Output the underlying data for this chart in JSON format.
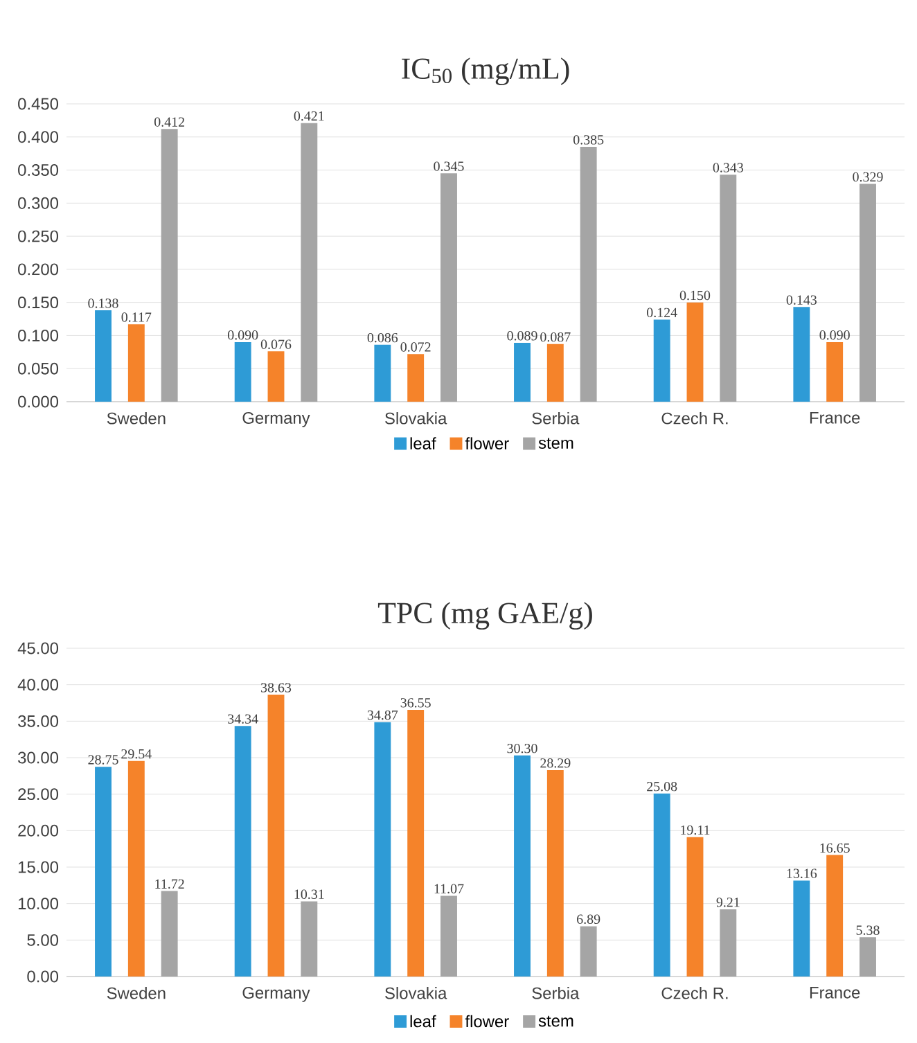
{
  "chart_data": [
    {
      "type": "bar",
      "title": "IC$_{50}$ (mg/mL)",
      "categories": [
        "Sweden",
        "Germany",
        "Slovakia",
        "Serbia",
        "Czech R.",
        "France"
      ],
      "series": [
        {
          "name": "leaf",
          "color": "#2e9bd6",
          "values": [
            0.138,
            0.09,
            0.086,
            0.089,
            0.124,
            0.143
          ],
          "value_labels": [
            "0.138",
            "0.090",
            "0.086",
            "0.089",
            "0.124",
            "0.143"
          ]
        },
        {
          "name": "flower",
          "color": "#f5832a",
          "values": [
            0.117,
            0.076,
            0.072,
            0.087,
            0.15,
            0.09
          ],
          "value_labels": [
            "0.117",
            "0.076",
            "0.072",
            "0.087",
            "0.150",
            "0.090"
          ]
        },
        {
          "name": "stem",
          "color": "#a5a5a5",
          "values": [
            0.412,
            0.421,
            0.345,
            0.385,
            0.343,
            0.329
          ],
          "value_labels": [
            "0.412",
            "0.421",
            "0.345",
            "0.385",
            "0.343",
            "0.329"
          ]
        }
      ],
      "ylim": [
        0,
        0.45
      ],
      "yticks": [
        {
          "value": 0,
          "label": "0.000"
        },
        {
          "value": 0.05,
          "label": "0.050"
        },
        {
          "value": 0.1,
          "label": "0.100"
        },
        {
          "value": 0.15,
          "label": "0.150"
        },
        {
          "value": 0.2,
          "label": "0.200"
        },
        {
          "value": 0.25,
          "label": "0.250"
        },
        {
          "value": 0.3,
          "label": "0.300"
        },
        {
          "value": 0.35,
          "label": "0.350"
        },
        {
          "value": 0.4,
          "label": "0.400"
        },
        {
          "value": 0.45,
          "label": "0.450"
        }
      ],
      "grid": "y",
      "legend": "bottom"
    },
    {
      "type": "bar",
      "title": "TPC (mg GAE/g)",
      "categories": [
        "Sweden",
        "Germany",
        "Slovakia",
        "Serbia",
        "Czech R.",
        "France"
      ],
      "series": [
        {
          "name": "leaf",
          "color": "#2e9bd6",
          "values": [
            28.75,
            34.34,
            34.87,
            30.3,
            25.08,
            13.16
          ],
          "value_labels": [
            "28.75",
            "34.34",
            "34.87",
            "30.30",
            "25.08",
            "13.16"
          ]
        },
        {
          "name": "flower",
          "color": "#f5832a",
          "values": [
            29.54,
            38.63,
            36.55,
            28.29,
            19.11,
            16.65
          ],
          "value_labels": [
            "29.54",
            "38.63",
            "36.55",
            "28.29",
            "19.11",
            "16.65"
          ]
        },
        {
          "name": "stem",
          "color": "#a5a5a5",
          "values": [
            11.72,
            10.31,
            11.07,
            6.89,
            9.21,
            5.38
          ],
          "value_labels": [
            "11.72",
            "10.31",
            "11.07",
            "6.89",
            "9.21",
            "5.38"
          ]
        }
      ],
      "ylim": [
        0,
        45
      ],
      "yticks": [
        {
          "value": 0,
          "label": "0.00"
        },
        {
          "value": 5,
          "label": "5.00"
        },
        {
          "value": 10,
          "label": "10.00"
        },
        {
          "value": 15,
          "label": "15.00"
        },
        {
          "value": 20,
          "label": "20.00"
        },
        {
          "value": 25,
          "label": "25.00"
        },
        {
          "value": 30,
          "label": "30.00"
        },
        {
          "value": 35,
          "label": "35.00"
        },
        {
          "value": 40,
          "label": "40.00"
        },
        {
          "value": 45,
          "label": "45.00"
        }
      ],
      "grid": "y",
      "legend": "bottom"
    }
  ]
}
